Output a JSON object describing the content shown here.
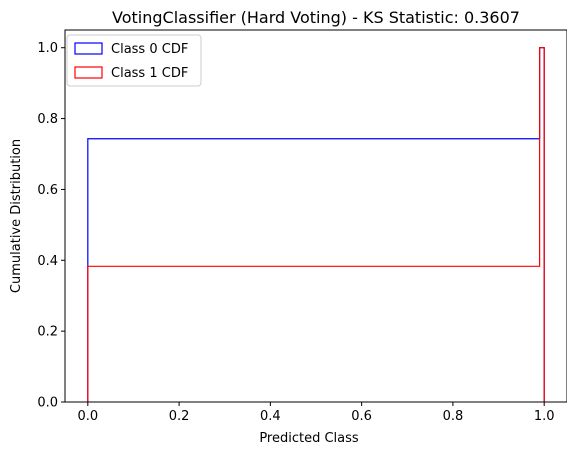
{
  "chart_data": {
    "type": "line",
    "title": "VotingClassifier (Hard Voting) - KS Statistic: 0.3607",
    "xlabel": "Predicted Class",
    "ylabel": "Cumulative Distribution",
    "xlim": [
      -0.05,
      1.05
    ],
    "ylim": [
      0,
      1.05
    ],
    "xticks": [
      "0.0",
      "0.2",
      "0.4",
      "0.6",
      "0.8",
      "1.0"
    ],
    "yticks": [
      "0.0",
      "0.2",
      "0.4",
      "0.6",
      "0.8",
      "1.0"
    ],
    "grid": false,
    "legend_position": "top-left",
    "series": [
      {
        "name": "Class 0 CDF",
        "color": "#0000ff",
        "x": [
          0.0,
          0.0,
          0.99,
          0.99,
          1.0,
          1.0
        ],
        "y": [
          0.0,
          0.743,
          0.743,
          1.0,
          1.0,
          0.0
        ]
      },
      {
        "name": "Class 1 CDF",
        "color": "#ff0000",
        "x": [
          0.0,
          0.0,
          0.99,
          0.99,
          1.0,
          1.0
        ],
        "y": [
          0.0,
          0.383,
          0.383,
          1.0,
          1.0,
          0.0
        ]
      }
    ]
  }
}
